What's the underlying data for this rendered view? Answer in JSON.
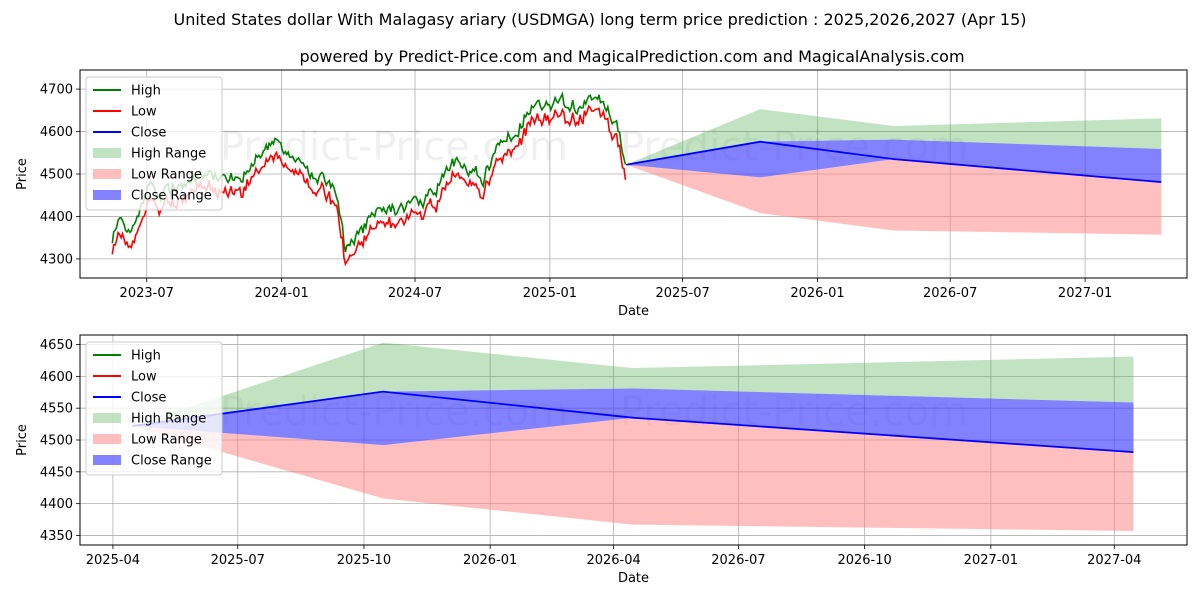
{
  "header": {
    "title": "United States dollar With Malagasy ariary (USDMGA) long term price prediction : 2025,2026,2027 (Apr 15)",
    "subtitle": "powered by Predict-Price.com and MagicalPrediction.com and MagicalAnalysis.com"
  },
  "watermark": "Predict-Price.com",
  "colors": {
    "high": "#008000",
    "low": "#ff0000",
    "close": "#0000ff",
    "high_range": "#4caf50",
    "low_range": "#ff8080",
    "close_range": "#3f3fff"
  },
  "legend": [
    "High",
    "Low",
    "Close",
    "High Range",
    "Low Range",
    "Close Range"
  ],
  "chart_data": [
    {
      "type": "line",
      "panel": "top",
      "xlabel": "Date",
      "ylabel": "Price",
      "xlim": [
        "2023-04-01",
        "2027-05-20"
      ],
      "ylim": [
        4255,
        4745
      ],
      "x_ticks": [
        "2023-07",
        "2024-01",
        "2024-07",
        "2025-01",
        "2025-07",
        "2026-01",
        "2026-07",
        "2027-01"
      ],
      "y_ticks": [
        4300,
        4400,
        4500,
        4600,
        4700
      ],
      "history_anchors": [
        [
          "2023-05-15",
          4340
        ],
        [
          "2023-05-25",
          4375
        ],
        [
          "2023-06-10",
          4360
        ],
        [
          "2023-06-20",
          4390
        ],
        [
          "2023-07-05",
          4470
        ],
        [
          "2023-07-15",
          4420
        ],
        [
          "2023-07-25",
          4440
        ],
        [
          "2023-08-10",
          4450
        ],
        [
          "2023-08-25",
          4470
        ],
        [
          "2023-09-10",
          4490
        ],
        [
          "2023-10-01",
          4480
        ],
        [
          "2023-10-20",
          4470
        ],
        [
          "2023-11-10",
          4480
        ],
        [
          "2023-12-01",
          4530
        ],
        [
          "2023-12-20",
          4560
        ],
        [
          "2024-01-10",
          4540
        ],
        [
          "2024-01-25",
          4510
        ],
        [
          "2024-02-10",
          4480
        ],
        [
          "2024-02-28",
          4470
        ],
        [
          "2024-03-15",
          4440
        ],
        [
          "2024-03-28",
          4310
        ],
        [
          "2024-04-10",
          4330
        ],
        [
          "2024-04-25",
          4370
        ],
        [
          "2024-05-15",
          4385
        ],
        [
          "2024-06-05",
          4395
        ],
        [
          "2024-06-25",
          4410
        ],
        [
          "2024-07-15",
          4420
        ],
        [
          "2024-07-30",
          4450
        ],
        [
          "2024-08-15",
          4500
        ],
        [
          "2024-08-30",
          4520
        ],
        [
          "2024-09-15",
          4490
        ],
        [
          "2024-10-01",
          4480
        ],
        [
          "2024-10-20",
          4540
        ],
        [
          "2024-11-05",
          4560
        ],
        [
          "2024-11-25",
          4610
        ],
        [
          "2024-12-10",
          4650
        ],
        [
          "2024-12-25",
          4640
        ],
        [
          "2025-01-10",
          4660
        ],
        [
          "2025-01-25",
          4650
        ],
        [
          "2025-02-10",
          4640
        ],
        [
          "2025-02-25",
          4670
        ],
        [
          "2025-03-10",
          4660
        ],
        [
          "2025-03-25",
          4620
        ],
        [
          "2025-04-05",
          4600
        ],
        [
          "2025-04-10",
          4550
        ],
        [
          "2025-04-15",
          4522
        ]
      ],
      "forecast": {
        "dates": [
          "2025-04-15",
          "2025-10-15",
          "2026-04-15",
          "2027-04-15"
        ],
        "close": [
          4522,
          4576,
          4535,
          4481
        ],
        "close_range_low": [
          4522,
          4492,
          4535,
          4481
        ],
        "close_range_high": [
          4522,
          4576,
          4581,
          4559
        ],
        "high_range_low": [
          4522,
          4576,
          4581,
          4559
        ],
        "high_range_high": [
          4522,
          4653,
          4613,
          4631
        ],
        "low_range_low": [
          4522,
          4408,
          4367,
          4357
        ],
        "low_range_high": [
          4522,
          4492,
          4535,
          4481
        ]
      }
    },
    {
      "type": "line",
      "panel": "bottom",
      "xlabel": "Date",
      "ylabel": "Price",
      "xlim": [
        "2025-03-08",
        "2027-05-24"
      ],
      "ylim": [
        4335,
        4665
      ],
      "x_ticks": [
        "2025-04",
        "2025-07",
        "2025-10",
        "2026-01",
        "2026-04",
        "2026-07",
        "2026-10",
        "2027-01",
        "2027-04"
      ],
      "y_ticks": [
        4350,
        4400,
        4450,
        4500,
        4550,
        4600,
        4650
      ],
      "forecast": {
        "dates": [
          "2025-04-15",
          "2025-10-15",
          "2026-04-15",
          "2027-04-15"
        ],
        "close": [
          4522,
          4576,
          4535,
          4481
        ],
        "close_range_low": [
          4522,
          4492,
          4535,
          4481
        ],
        "close_range_high": [
          4522,
          4576,
          4581,
          4559
        ],
        "high_range_low": [
          4522,
          4576,
          4581,
          4559
        ],
        "high_range_high": [
          4522,
          4653,
          4613,
          4631
        ],
        "low_range_low": [
          4522,
          4408,
          4367,
          4357
        ],
        "low_range_high": [
          4522,
          4492,
          4535,
          4481
        ]
      }
    }
  ]
}
